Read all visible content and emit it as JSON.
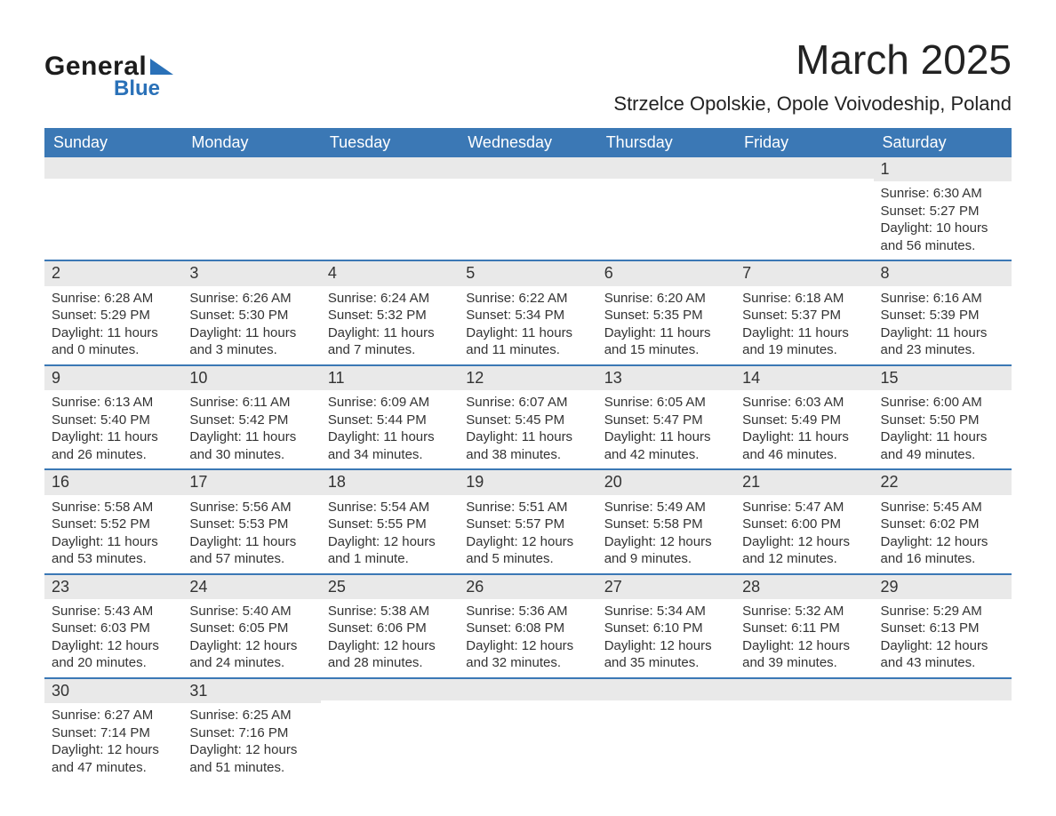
{
  "brand": {
    "word1": "General",
    "word2": "Blue",
    "accent_color": "#2a71b8"
  },
  "title": "March 2025",
  "location": "Strzelce Opolskie, Opole Voivodeship, Poland",
  "colors": {
    "header_bg": "#3b78b5",
    "header_text": "#ffffff",
    "band_bg": "#e9e9e9",
    "text": "#333333",
    "divider": "#3b78b5",
    "page_bg": "#ffffff"
  },
  "typography": {
    "title_fontsize": 46,
    "location_fontsize": 22,
    "dayhead_fontsize": 18,
    "daynum_fontsize": 18,
    "body_fontsize": 15
  },
  "day_names": [
    "Sunday",
    "Monday",
    "Tuesday",
    "Wednesday",
    "Thursday",
    "Friday",
    "Saturday"
  ],
  "labels": {
    "sunrise": "Sunrise:",
    "sunset": "Sunset:",
    "daylight": "Daylight:"
  },
  "weeks": [
    [
      {
        "blank": true
      },
      {
        "blank": true
      },
      {
        "blank": true
      },
      {
        "blank": true
      },
      {
        "blank": true
      },
      {
        "blank": true
      },
      {
        "day": "1",
        "sunrise": "6:30 AM",
        "sunset": "5:27 PM",
        "daylight1": "10 hours",
        "daylight2": "and 56 minutes."
      }
    ],
    [
      {
        "day": "2",
        "sunrise": "6:28 AM",
        "sunset": "5:29 PM",
        "daylight1": "11 hours",
        "daylight2": "and 0 minutes."
      },
      {
        "day": "3",
        "sunrise": "6:26 AM",
        "sunset": "5:30 PM",
        "daylight1": "11 hours",
        "daylight2": "and 3 minutes."
      },
      {
        "day": "4",
        "sunrise": "6:24 AM",
        "sunset": "5:32 PM",
        "daylight1": "11 hours",
        "daylight2": "and 7 minutes."
      },
      {
        "day": "5",
        "sunrise": "6:22 AM",
        "sunset": "5:34 PM",
        "daylight1": "11 hours",
        "daylight2": "and 11 minutes."
      },
      {
        "day": "6",
        "sunrise": "6:20 AM",
        "sunset": "5:35 PM",
        "daylight1": "11 hours",
        "daylight2": "and 15 minutes."
      },
      {
        "day": "7",
        "sunrise": "6:18 AM",
        "sunset": "5:37 PM",
        "daylight1": "11 hours",
        "daylight2": "and 19 minutes."
      },
      {
        "day": "8",
        "sunrise": "6:16 AM",
        "sunset": "5:39 PM",
        "daylight1": "11 hours",
        "daylight2": "and 23 minutes."
      }
    ],
    [
      {
        "day": "9",
        "sunrise": "6:13 AM",
        "sunset": "5:40 PM",
        "daylight1": "11 hours",
        "daylight2": "and 26 minutes."
      },
      {
        "day": "10",
        "sunrise": "6:11 AM",
        "sunset": "5:42 PM",
        "daylight1": "11 hours",
        "daylight2": "and 30 minutes."
      },
      {
        "day": "11",
        "sunrise": "6:09 AM",
        "sunset": "5:44 PM",
        "daylight1": "11 hours",
        "daylight2": "and 34 minutes."
      },
      {
        "day": "12",
        "sunrise": "6:07 AM",
        "sunset": "5:45 PM",
        "daylight1": "11 hours",
        "daylight2": "and 38 minutes."
      },
      {
        "day": "13",
        "sunrise": "6:05 AM",
        "sunset": "5:47 PM",
        "daylight1": "11 hours",
        "daylight2": "and 42 minutes."
      },
      {
        "day": "14",
        "sunrise": "6:03 AM",
        "sunset": "5:49 PM",
        "daylight1": "11 hours",
        "daylight2": "and 46 minutes."
      },
      {
        "day": "15",
        "sunrise": "6:00 AM",
        "sunset": "5:50 PM",
        "daylight1": "11 hours",
        "daylight2": "and 49 minutes."
      }
    ],
    [
      {
        "day": "16",
        "sunrise": "5:58 AM",
        "sunset": "5:52 PM",
        "daylight1": "11 hours",
        "daylight2": "and 53 minutes."
      },
      {
        "day": "17",
        "sunrise": "5:56 AM",
        "sunset": "5:53 PM",
        "daylight1": "11 hours",
        "daylight2": "and 57 minutes."
      },
      {
        "day": "18",
        "sunrise": "5:54 AM",
        "sunset": "5:55 PM",
        "daylight1": "12 hours",
        "daylight2": "and 1 minute."
      },
      {
        "day": "19",
        "sunrise": "5:51 AM",
        "sunset": "5:57 PM",
        "daylight1": "12 hours",
        "daylight2": "and 5 minutes."
      },
      {
        "day": "20",
        "sunrise": "5:49 AM",
        "sunset": "5:58 PM",
        "daylight1": "12 hours",
        "daylight2": "and 9 minutes."
      },
      {
        "day": "21",
        "sunrise": "5:47 AM",
        "sunset": "6:00 PM",
        "daylight1": "12 hours",
        "daylight2": "and 12 minutes."
      },
      {
        "day": "22",
        "sunrise": "5:45 AM",
        "sunset": "6:02 PM",
        "daylight1": "12 hours",
        "daylight2": "and 16 minutes."
      }
    ],
    [
      {
        "day": "23",
        "sunrise": "5:43 AM",
        "sunset": "6:03 PM",
        "daylight1": "12 hours",
        "daylight2": "and 20 minutes."
      },
      {
        "day": "24",
        "sunrise": "5:40 AM",
        "sunset": "6:05 PM",
        "daylight1": "12 hours",
        "daylight2": "and 24 minutes."
      },
      {
        "day": "25",
        "sunrise": "5:38 AM",
        "sunset": "6:06 PM",
        "daylight1": "12 hours",
        "daylight2": "and 28 minutes."
      },
      {
        "day": "26",
        "sunrise": "5:36 AM",
        "sunset": "6:08 PM",
        "daylight1": "12 hours",
        "daylight2": "and 32 minutes."
      },
      {
        "day": "27",
        "sunrise": "5:34 AM",
        "sunset": "6:10 PM",
        "daylight1": "12 hours",
        "daylight2": "and 35 minutes."
      },
      {
        "day": "28",
        "sunrise": "5:32 AM",
        "sunset": "6:11 PM",
        "daylight1": "12 hours",
        "daylight2": "and 39 minutes."
      },
      {
        "day": "29",
        "sunrise": "5:29 AM",
        "sunset": "6:13 PM",
        "daylight1": "12 hours",
        "daylight2": "and 43 minutes."
      }
    ],
    [
      {
        "day": "30",
        "sunrise": "6:27 AM",
        "sunset": "7:14 PM",
        "daylight1": "12 hours",
        "daylight2": "and 47 minutes."
      },
      {
        "day": "31",
        "sunrise": "6:25 AM",
        "sunset": "7:16 PM",
        "daylight1": "12 hours",
        "daylight2": "and 51 minutes."
      },
      {
        "blank": true
      },
      {
        "blank": true
      },
      {
        "blank": true
      },
      {
        "blank": true
      },
      {
        "blank": true
      }
    ]
  ]
}
